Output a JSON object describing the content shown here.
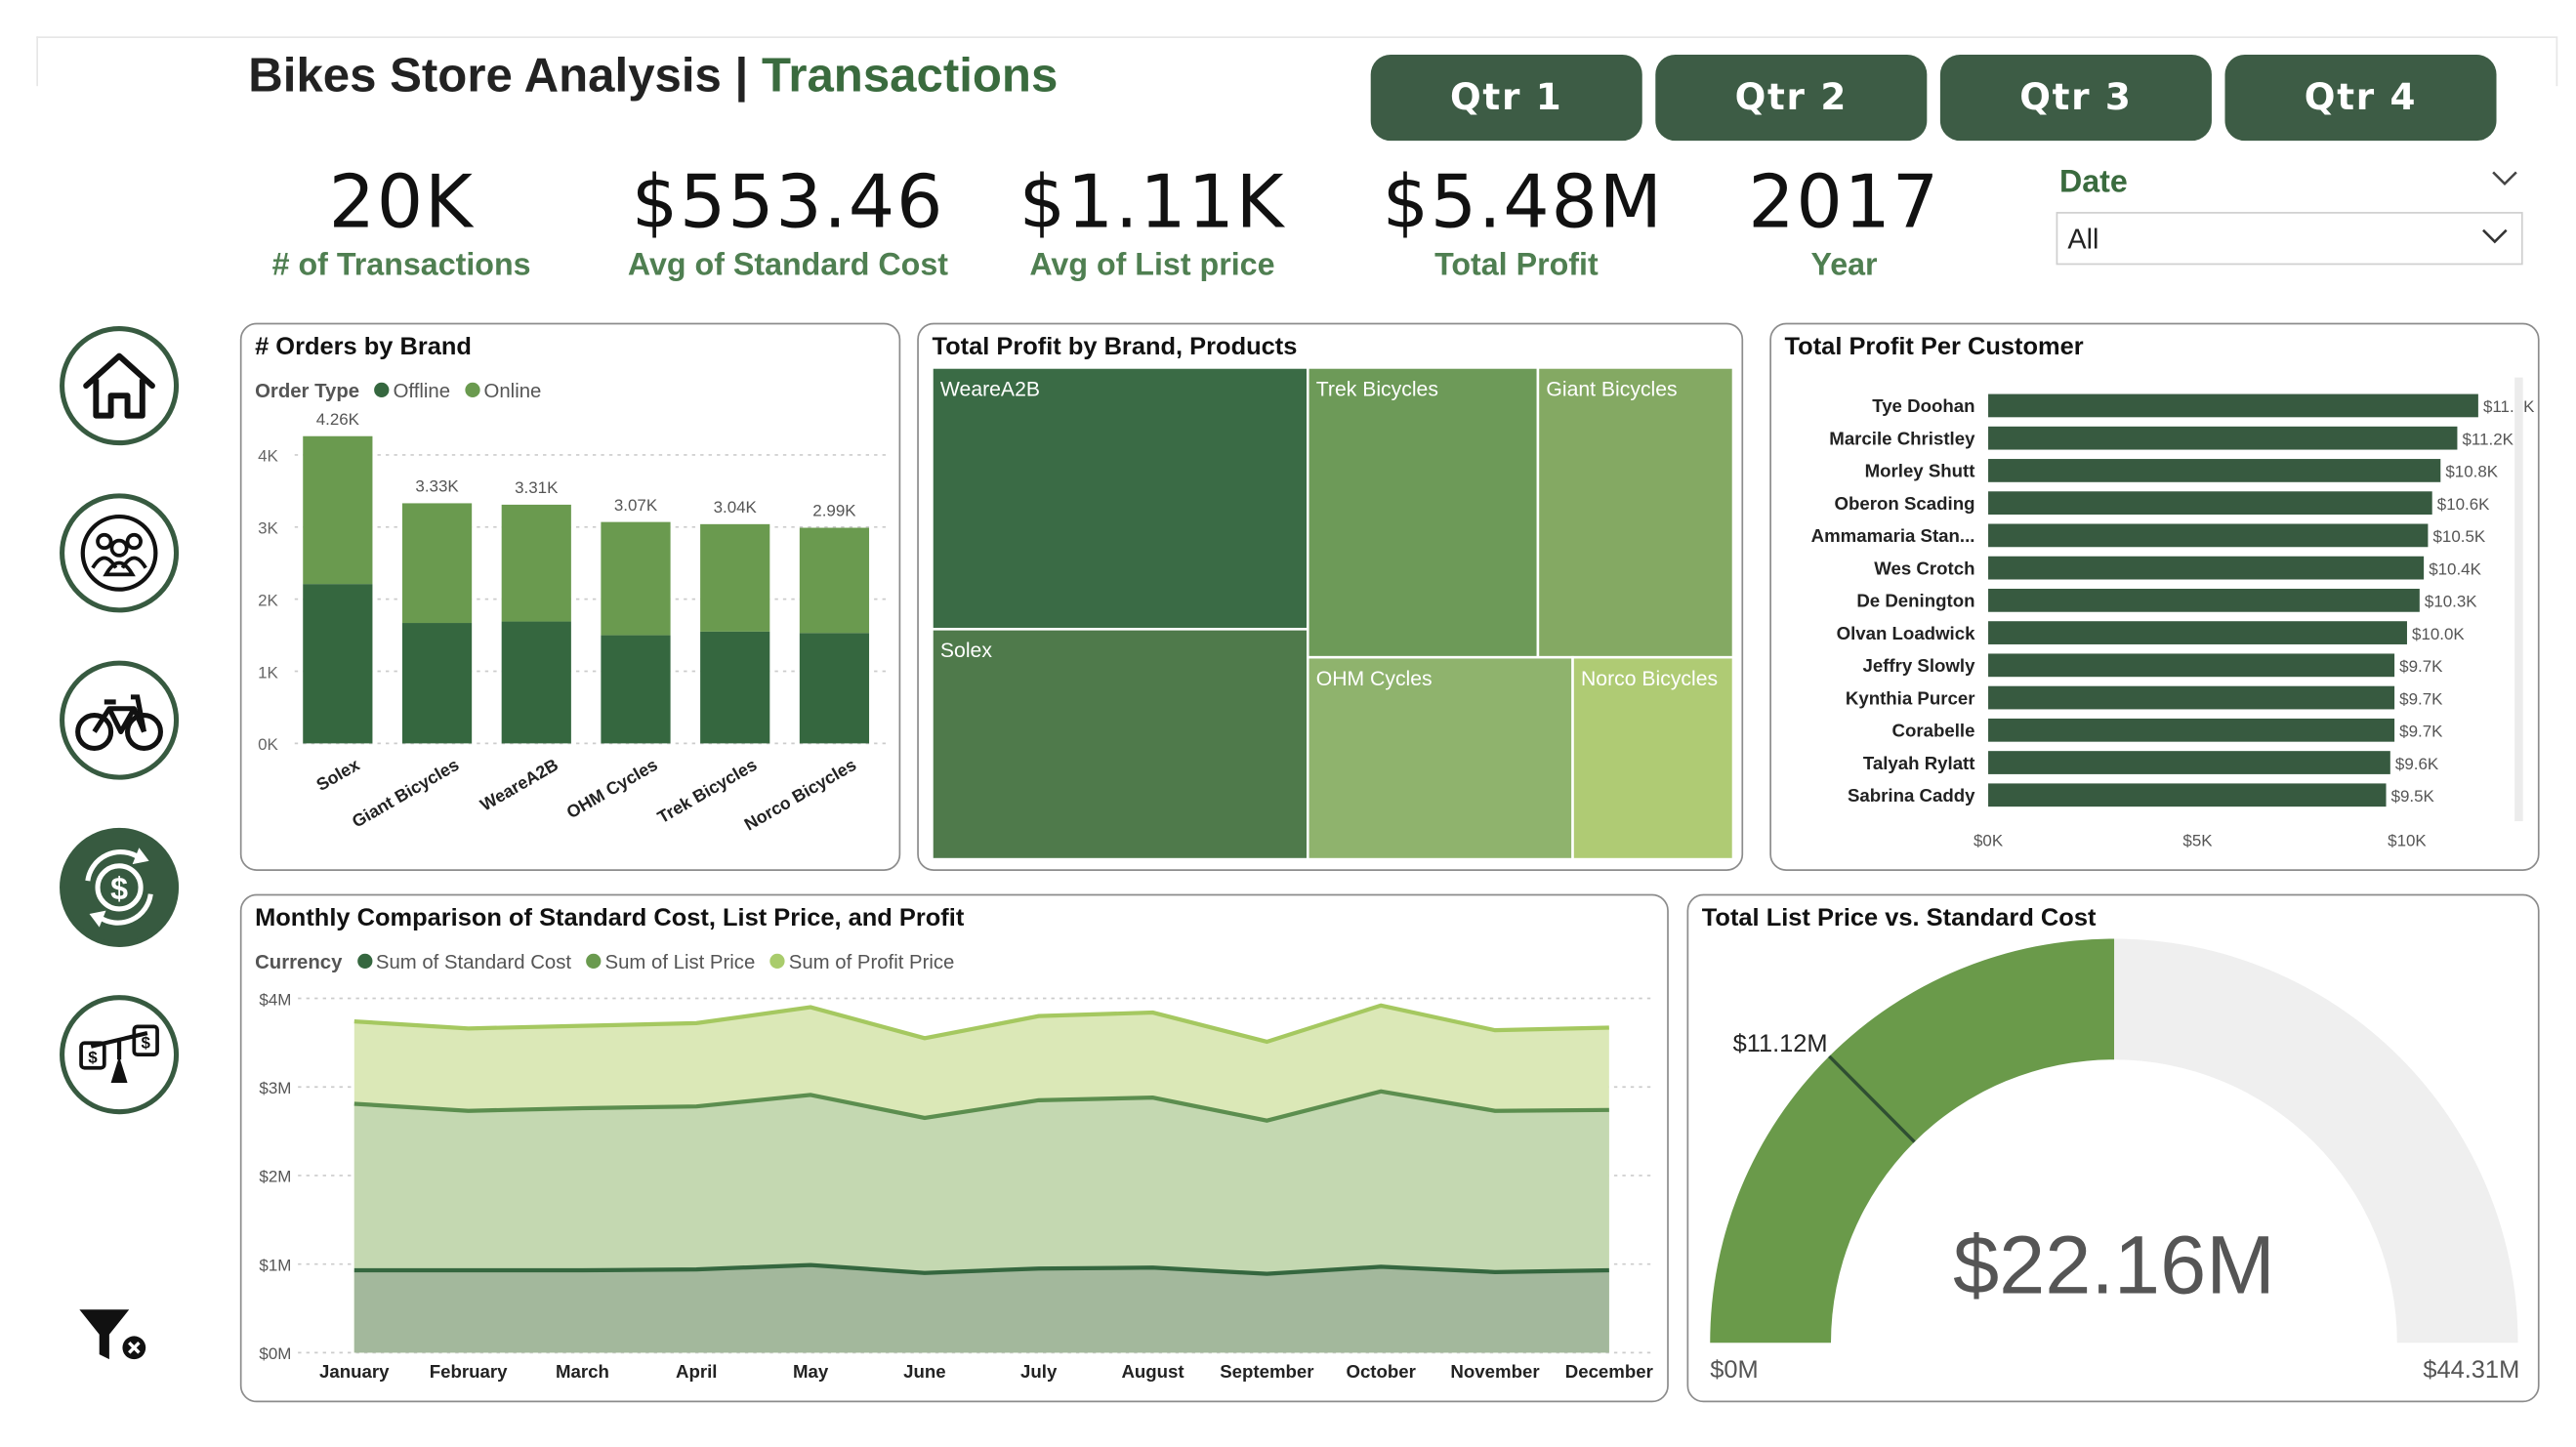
{
  "header": {
    "title_main": "Bikes Store Analysis",
    "title_sep": "|",
    "title_sub": "Transactions"
  },
  "quarters": [
    "Qtr 1",
    "Qtr 2",
    "Qtr 3",
    "Qtr 4"
  ],
  "kpis": [
    {
      "value": "20K",
      "label": "# of Transactions"
    },
    {
      "value": "$553.46",
      "label": "Avg of Standard Cost"
    },
    {
      "value": "$1.11K",
      "label": "Avg of List price"
    },
    {
      "value": "$5.48M",
      "label": "Total Profit"
    },
    {
      "value": "2017",
      "label": "Year"
    }
  ],
  "date_filter": {
    "label": "Date",
    "value": "All"
  },
  "nav": [
    "home-icon",
    "customers-icon",
    "bike-icon",
    "currency-exchange-icon",
    "price-scale-icon"
  ],
  "colors": {
    "dark": "#375a40",
    "offline": "#35673f",
    "online": "#6a9a4f",
    "accent": "#4f7f51"
  },
  "orders_chart": {
    "title": "# Orders by Brand",
    "legend_title": "Order Type",
    "legend": [
      "Offline",
      "Online"
    ],
    "chart_data": {
      "type": "bar",
      "stacked": true,
      "categories": [
        "Solex",
        "Giant Bicycles",
        "WeareA2B",
        "OHM Cycles",
        "Trek Bicycles",
        "Norco Bicycles"
      ],
      "series": [
        {
          "name": "Offline",
          "values": [
            2210,
            1670,
            1690,
            1500,
            1550,
            1530
          ]
        },
        {
          "name": "Online",
          "values": [
            2050,
            1660,
            1620,
            1570,
            1490,
            1460
          ]
        }
      ],
      "totals_labels": [
        "4.26K",
        "3.33K",
        "3.31K",
        "3.07K",
        "3.04K",
        "2.99K"
      ],
      "yticks": [
        "0K",
        "1K",
        "2K",
        "3K",
        "4K"
      ],
      "ylim": [
        0,
        4500
      ]
    }
  },
  "treemap": {
    "title": "Total Profit by Brand, Products",
    "tiles": [
      "WeareA2B",
      "Solex",
      "Trek Bicycles",
      "Giant Bicycles",
      "OHM Cycles",
      "Norco Bicycles"
    ]
  },
  "customer_chart": {
    "title": "Total Profit Per Customer",
    "chart_data": {
      "type": "bar",
      "orientation": "horizontal",
      "categories": [
        "Tye Doohan",
        "Marcile Christley",
        "Morley Shutt",
        "Oberon Scading",
        "Ammamaria Stan...",
        "Wes Crotch",
        "De Denington",
        "Olvan Loadwick",
        "Jeffry Slowly",
        "Kynthia Purcer",
        "Corabelle",
        "Talyah Rylatt",
        "Sabrina Caddy"
      ],
      "values": [
        11700,
        11200,
        10800,
        10600,
        10500,
        10400,
        10300,
        10000,
        9700,
        9700,
        9700,
        9600,
        9500
      ],
      "value_labels": [
        "$11.7K",
        "$11.2K",
        "$10.8K",
        "$10.6K",
        "$10.5K",
        "$10.4K",
        "$10.3K",
        "$10.0K",
        "$9.7K",
        "$9.7K",
        "$9.7K",
        "$9.6K",
        "$9.5K"
      ],
      "xticks": [
        "$0K",
        "$5K",
        "$10K"
      ],
      "xlim": [
        0,
        12000
      ]
    }
  },
  "monthly_chart": {
    "title": "Monthly Comparison of Standard Cost, List Price, and Profit",
    "legend_title": "Currency",
    "legend": [
      "Sum of Standard Cost",
      "Sum of List Price",
      "Sum of Profit Price"
    ],
    "chart_data": {
      "type": "area",
      "categories": [
        "January",
        "February",
        "March",
        "April",
        "May",
        "June",
        "July",
        "August",
        "September",
        "October",
        "November",
        "December"
      ],
      "series": [
        {
          "name": "Sum of Standard Cost",
          "values": [
            0.93,
            0.93,
            0.93,
            0.94,
            0.99,
            0.9,
            0.95,
            0.96,
            0.89,
            0.97,
            0.91,
            0.93
          ]
        },
        {
          "name": "Sum of List Price",
          "values": [
            2.81,
            2.73,
            2.76,
            2.78,
            2.91,
            2.65,
            2.85,
            2.88,
            2.62,
            2.95,
            2.73,
            2.74
          ]
        },
        {
          "name": "Sum of Profit Price",
          "values": [
            3.74,
            3.66,
            3.69,
            3.72,
            3.9,
            3.55,
            3.8,
            3.84,
            3.51,
            3.92,
            3.64,
            3.67
          ]
        }
      ],
      "yticks": [
        "$0M",
        "$1M",
        "$2M",
        "$3M",
        "$4M"
      ],
      "ylim": [
        0,
        4
      ]
    }
  },
  "gauge": {
    "title": "Total List Price vs. Standard Cost",
    "chart_data": {
      "type": "gauge",
      "value": 22.16,
      "target": 11.12,
      "min": 0,
      "max": 44.31
    },
    "value_label": "$22.16M",
    "target_label": "$11.12M",
    "min_label": "$0M",
    "max_label": "$44.31M"
  },
  "clear_filters_icon": "clear-filter-icon"
}
